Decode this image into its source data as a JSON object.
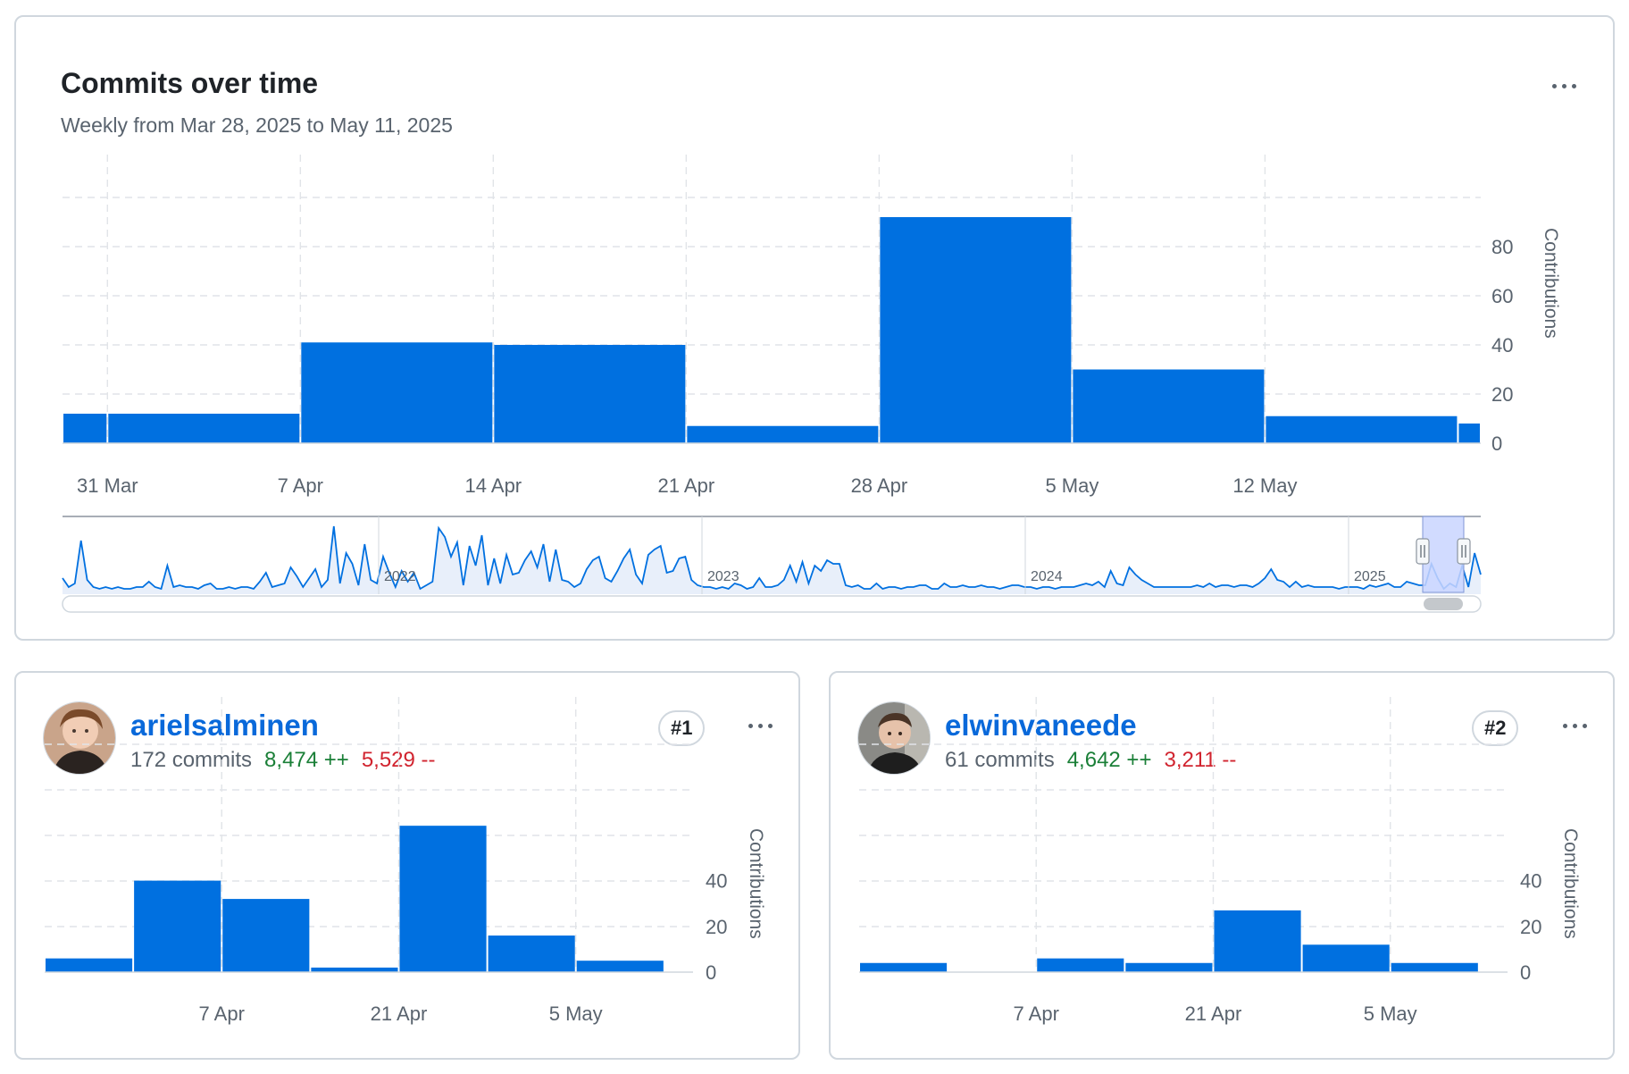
{
  "main": {
    "title": "Commits over time",
    "subtitle": "Weekly from Mar 28, 2025 to May 11, 2025"
  },
  "contributors": [
    {
      "username": "arielsalminen",
      "commits": "172 commits",
      "additions": "8,474 ++",
      "deletions": "5,529 --",
      "rank": "#1"
    },
    {
      "username": "elwinvaneede",
      "commits": "61 commits",
      "additions": "4,642 ++",
      "deletions": "3,211 --",
      "rank": "#2"
    }
  ],
  "colors": {
    "bar": "#0070e0",
    "add": "#1a7f37",
    "del": "#d1242f",
    "link": "#0969da",
    "overview_fill": "#e8effa",
    "selection": "#c9d5ff"
  },
  "chart_data": [
    {
      "type": "bar",
      "ylabel": "Contributions",
      "ylim": [
        0,
        100
      ],
      "yticks": [
        0,
        20,
        40,
        60,
        80
      ],
      "x_ticks": [
        "31 Mar",
        "7 Apr",
        "14 Apr",
        "21 Apr",
        "28 Apr",
        "5 May",
        "12 May"
      ],
      "bars": [
        {
          "week_start": "2025-03-24",
          "value": 12,
          "partial": "tail"
        },
        {
          "week_start": "2025-03-31",
          "value": 12
        },
        {
          "week_start": "2025-04-07",
          "value": 41
        },
        {
          "week_start": "2025-04-14",
          "value": 40
        },
        {
          "week_start": "2025-04-21",
          "value": 7
        },
        {
          "week_start": "2025-04-28",
          "value": 92
        },
        {
          "week_start": "2025-05-05",
          "value": 30
        },
        {
          "week_start": "2025-05-12",
          "value": 11
        },
        {
          "week_start": "2025-05-19",
          "value": 8,
          "partial": "head"
        }
      ],
      "grid": true,
      "navigator": {
        "year_labels": [
          "2022",
          "2023",
          "2024",
          "2025"
        ],
        "series": [
          6,
          1,
          3,
          27,
          5,
          1,
          0,
          1,
          0,
          1,
          0,
          0,
          1,
          1,
          4,
          1,
          0,
          13,
          1,
          2,
          1,
          1,
          0,
          2,
          3,
          0,
          0,
          1,
          0,
          1,
          1,
          0,
          4,
          9,
          1,
          2,
          3,
          12,
          7,
          1,
          6,
          11,
          1,
          5,
          35,
          3,
          20,
          14,
          2,
          25,
          5,
          3,
          18,
          9,
          1,
          10,
          4,
          9,
          0,
          2,
          4,
          34,
          29,
          18,
          26,
          2,
          24,
          13,
          30,
          2,
          17,
          3,
          19,
          8,
          9,
          16,
          21,
          12,
          25,
          4,
          22,
          5,
          4,
          1,
          3,
          11,
          16,
          18,
          6,
          4,
          10,
          17,
          22,
          8,
          3,
          19,
          22,
          24,
          9,
          10,
          17,
          18,
          5,
          2,
          1,
          1,
          0,
          1,
          0,
          3,
          2,
          0,
          1,
          6,
          1,
          1,
          2,
          5,
          13,
          4,
          15,
          3,
          13,
          10,
          16,
          14,
          14,
          2,
          1,
          2,
          0,
          0,
          3,
          0,
          1,
          1,
          0,
          1,
          1,
          2,
          2,
          0,
          0,
          3,
          1,
          1,
          2,
          1,
          1,
          2,
          1,
          1,
          0,
          1,
          2,
          2,
          1,
          1,
          0,
          1,
          1,
          0,
          1,
          1,
          1,
          2,
          3,
          2,
          4,
          1,
          10,
          3,
          2,
          12,
          8,
          5,
          3,
          1,
          1,
          1,
          1,
          1,
          1,
          1,
          2,
          1,
          3,
          1,
          2,
          2,
          1,
          2,
          2,
          1,
          3,
          6,
          11,
          5,
          4,
          1,
          4,
          1,
          2,
          1,
          1,
          1,
          1,
          0,
          1,
          1,
          1,
          0,
          2,
          1,
          2,
          3,
          1,
          1,
          4,
          3,
          2,
          2,
          14,
          6,
          0,
          3,
          1,
          13,
          1,
          20,
          8
        ]
      }
    },
    {
      "type": "bar",
      "ylabel": "Contributions",
      "ylim": [
        0,
        60
      ],
      "yticks": [
        0,
        20,
        40
      ],
      "x_ticks": [
        "7 Apr",
        "21 Apr",
        "5 May"
      ],
      "bars": [
        {
          "week_start": "2025-03-24",
          "value": 6
        },
        {
          "week_start": "2025-03-31",
          "value": 40
        },
        {
          "week_start": "2025-04-07",
          "value": 32
        },
        {
          "week_start": "2025-04-14",
          "value": 2
        },
        {
          "week_start": "2025-04-21",
          "value": 64
        },
        {
          "week_start": "2025-04-28",
          "value": 16
        },
        {
          "week_start": "2025-05-05",
          "value": 5
        }
      ],
      "grid": true
    },
    {
      "type": "bar",
      "ylabel": "Contributions",
      "ylim": [
        0,
        60
      ],
      "yticks": [
        0,
        20,
        40
      ],
      "x_ticks": [
        "7 Apr",
        "21 Apr",
        "5 May"
      ],
      "bars": [
        {
          "week_start": "2025-03-24",
          "value": 4
        },
        {
          "week_start": "2025-03-31",
          "value": 0
        },
        {
          "week_start": "2025-04-07",
          "value": 6
        },
        {
          "week_start": "2025-04-14",
          "value": 4
        },
        {
          "week_start": "2025-04-21",
          "value": 27
        },
        {
          "week_start": "2025-04-28",
          "value": 12
        },
        {
          "week_start": "2025-05-05",
          "value": 4
        }
      ],
      "grid": true
    }
  ]
}
